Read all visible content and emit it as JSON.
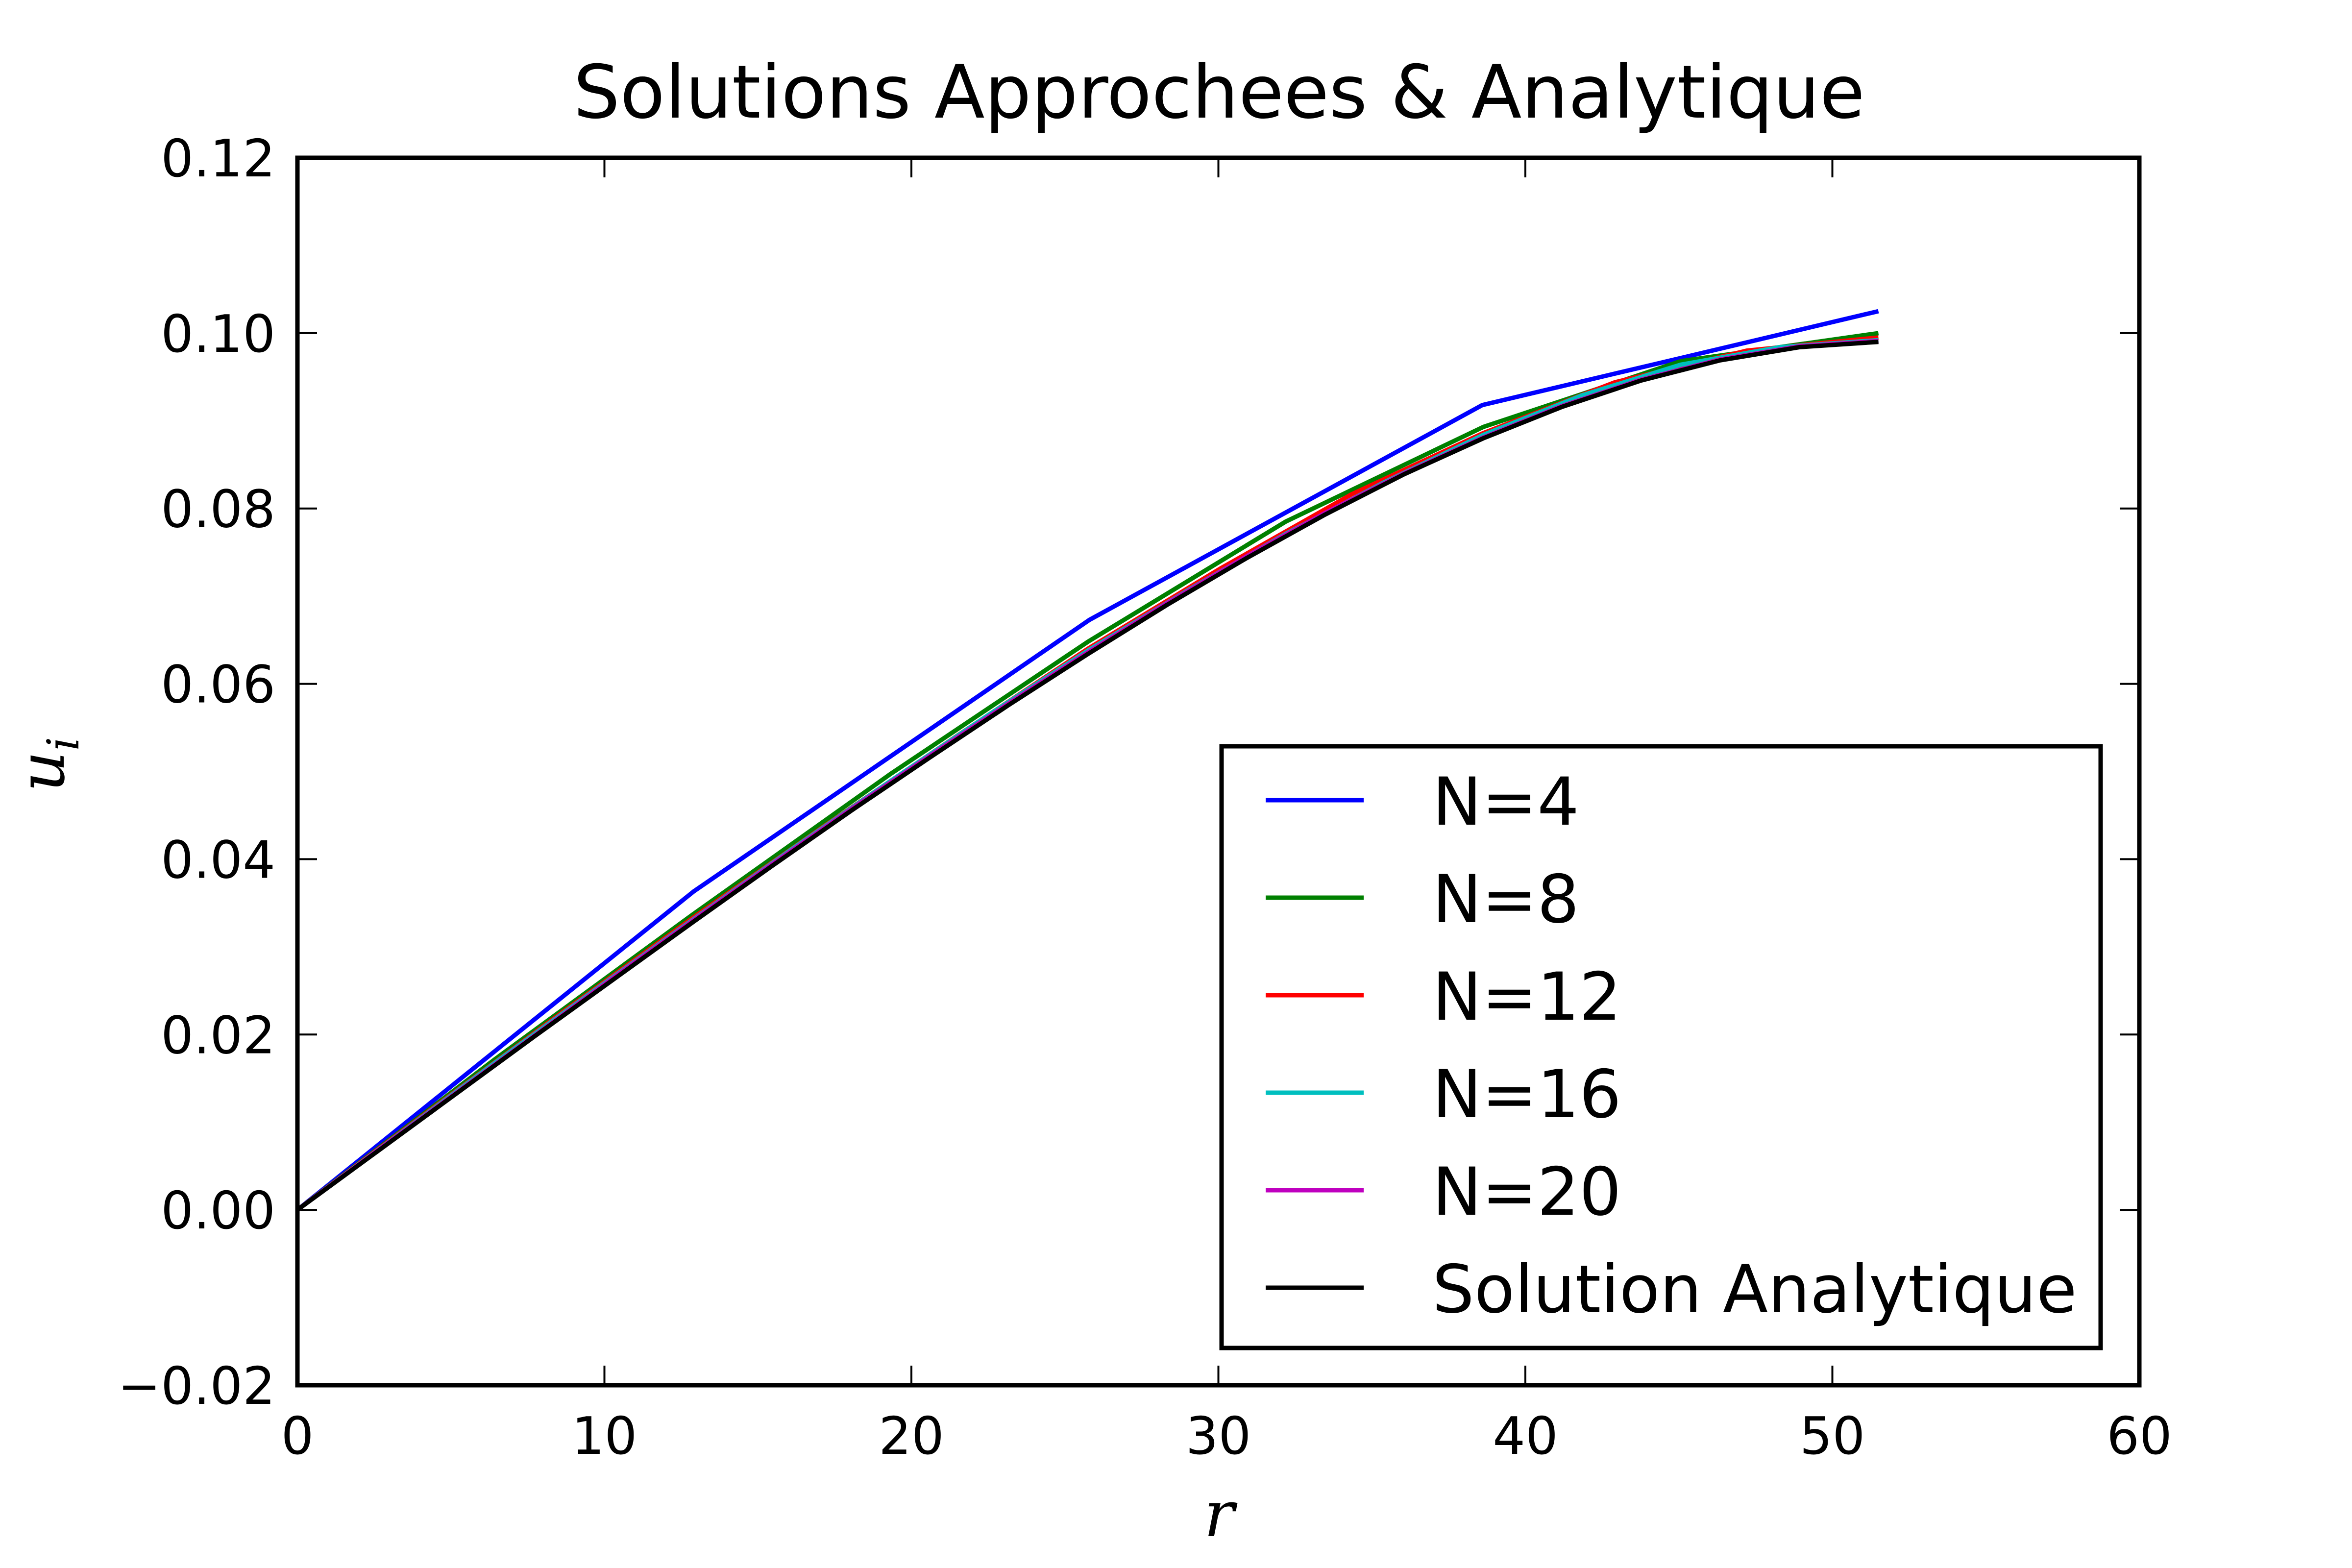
{
  "chart_data": {
    "type": "line",
    "title": "Solutions Approchees & Analytique",
    "xlabel": "r",
    "ylabel": "u_i",
    "xlim": [
      0,
      60
    ],
    "ylim": [
      -0.02,
      0.12
    ],
    "x_ticks": [
      0,
      10,
      20,
      30,
      40,
      50,
      60
    ],
    "x_tick_labels": [
      "0",
      "10",
      "20",
      "30",
      "40",
      "50",
      "60"
    ],
    "y_ticks": [
      -0.02,
      0.0,
      0.02,
      0.04,
      0.06,
      0.08,
      0.1,
      0.12
    ],
    "y_tick_labels": [
      "−0.02",
      "0.00",
      "0.02",
      "0.04",
      "0.06",
      "0.08",
      "0.10",
      "0.12"
    ],
    "grid": false,
    "legend_position": "lower-right",
    "series": [
      {
        "name": "N=4",
        "color": "#0000ff",
        "x": [
          0,
          12.9,
          25.8,
          38.6,
          51.5
        ],
        "y": [
          0.0,
          0.0363,
          0.0673,
          0.0918,
          0.1025
        ]
      },
      {
        "name": "N=8",
        "color": "#008000",
        "x": [
          0,
          6.44,
          12.88,
          19.31,
          25.75,
          32.19,
          38.63,
          45.06,
          51.5
        ],
        "y": [
          0.0,
          0.0172,
          0.0337,
          0.0497,
          0.0648,
          0.0785,
          0.0893,
          0.0968,
          0.1
        ]
      },
      {
        "name": "N=12",
        "color": "#ff0000",
        "x": [
          0,
          4.29,
          8.58,
          12.88,
          17.17,
          21.46,
          25.75,
          30.04,
          34.33,
          38.63,
          42.92,
          47.21,
          51.5
        ],
        "y": [
          0.0,
          0.0113,
          0.0224,
          0.0333,
          0.0438,
          0.054,
          0.064,
          0.0731,
          0.0816,
          0.0886,
          0.0944,
          0.098,
          0.0995
        ]
      },
      {
        "name": "N=16",
        "color": "#00bfbf",
        "x": [
          0,
          3.22,
          6.44,
          9.66,
          12.88,
          16.09,
          19.31,
          22.53,
          25.75,
          28.97,
          32.19,
          35.41,
          38.63,
          41.84,
          45.06,
          48.28,
          51.5
        ],
        "y": [
          0.0,
          0.0084,
          0.0168,
          0.025,
          0.0331,
          0.0411,
          0.0489,
          0.0565,
          0.0638,
          0.0706,
          0.0771,
          0.083,
          0.0884,
          0.0929,
          0.0964,
          0.0984,
          0.0992
        ]
      },
      {
        "name": "N=20",
        "color": "#bf00bf",
        "x": [
          0,
          2.58,
          5.15,
          7.73,
          10.3,
          12.88,
          15.45,
          18.03,
          20.6,
          23.18,
          25.75,
          28.33,
          30.9,
          33.48,
          36.05,
          38.63,
          41.2,
          43.78,
          46.35,
          48.93,
          51.5
        ],
        "y": [
          0.0,
          0.0067,
          0.0133,
          0.0199,
          0.0265,
          0.033,
          0.0394,
          0.0457,
          0.0518,
          0.0578,
          0.0636,
          0.0692,
          0.0745,
          0.0795,
          0.084,
          0.0881,
          0.0917,
          0.0947,
          0.097,
          0.0985,
          0.0991
        ]
      },
      {
        "name": "Solution Analytique",
        "color": "#000000",
        "x": [
          0,
          2.575,
          5.15,
          7.725,
          10.3,
          12.875,
          15.45,
          18.025,
          20.6,
          23.175,
          25.75,
          28.325,
          30.9,
          33.475,
          36.05,
          38.625,
          41.2,
          43.775,
          46.35,
          48.925,
          51.5
        ],
        "y": [
          0.0,
          0.0066,
          0.0132,
          0.0198,
          0.0263,
          0.0328,
          0.0392,
          0.0455,
          0.0516,
          0.0576,
          0.0634,
          0.069,
          0.0743,
          0.0793,
          0.0839,
          0.088,
          0.0916,
          0.0946,
          0.0969,
          0.0984,
          0.099
        ]
      }
    ]
  }
}
